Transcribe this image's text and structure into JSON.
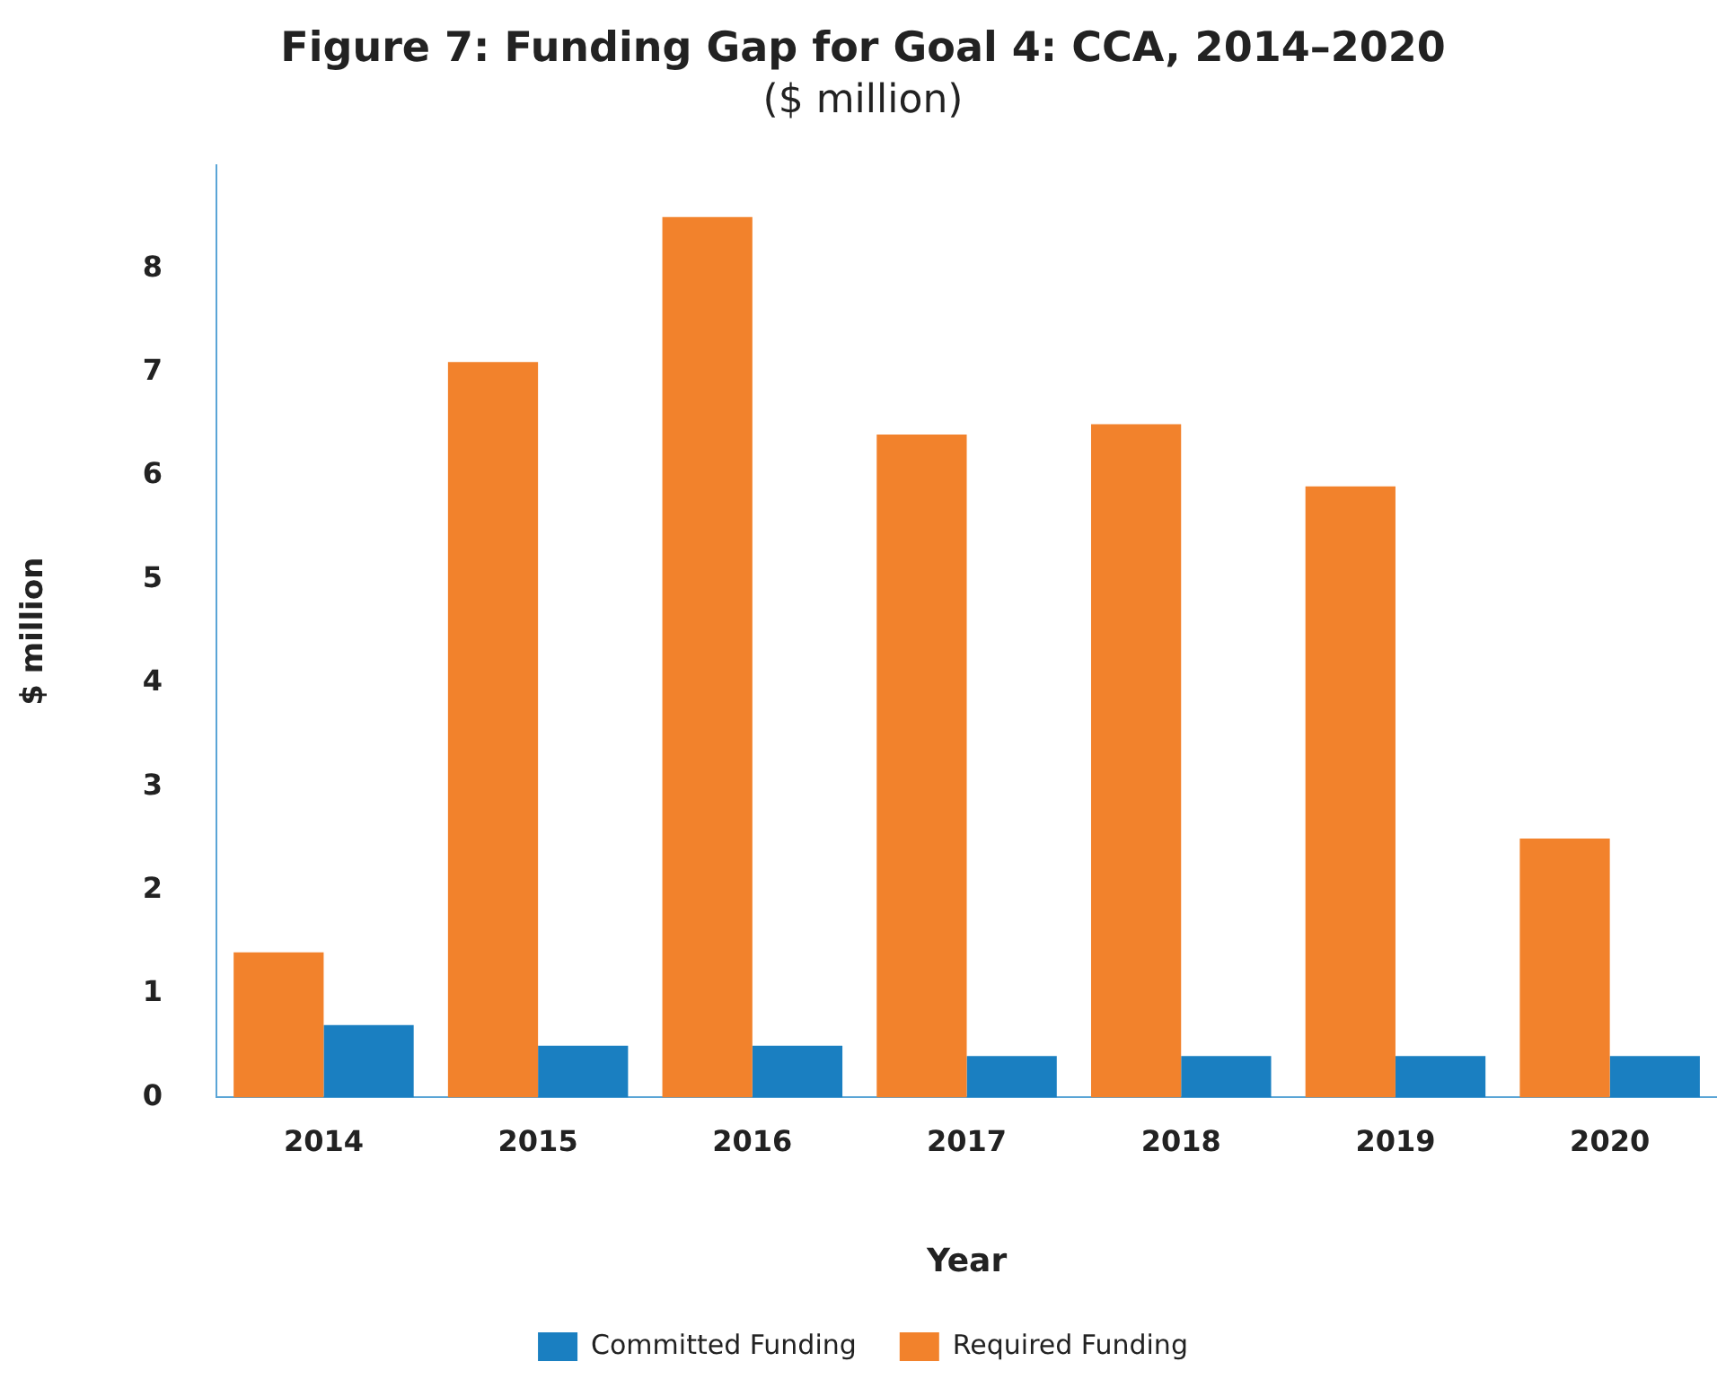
{
  "chart_data": {
    "type": "bar",
    "title": "Figure 7: Funding Gap for Goal 4: CCA, 2014–2020",
    "subtitle": "($ million)",
    "xlabel": "Year",
    "ylabel": "$ million",
    "categories": [
      "2014",
      "2015",
      "2016",
      "2017",
      "2018",
      "2019",
      "2020"
    ],
    "series": [
      {
        "name": "Required Funding",
        "color": "#f2822c",
        "values": [
          1.4,
          7.1,
          8.5,
          6.4,
          6.5,
          5.9,
          2.5
        ]
      },
      {
        "name": "Committed Funding",
        "color": "#1a7fc1",
        "values": [
          0.7,
          0.5,
          0.5,
          0.4,
          0.4,
          0.4,
          0.4
        ]
      }
    ],
    "ylim": [
      0,
      9
    ],
    "yticks": [
      0,
      1,
      2,
      3,
      4,
      5,
      6,
      7,
      8
    ],
    "grid": false,
    "legend": "bottom"
  }
}
